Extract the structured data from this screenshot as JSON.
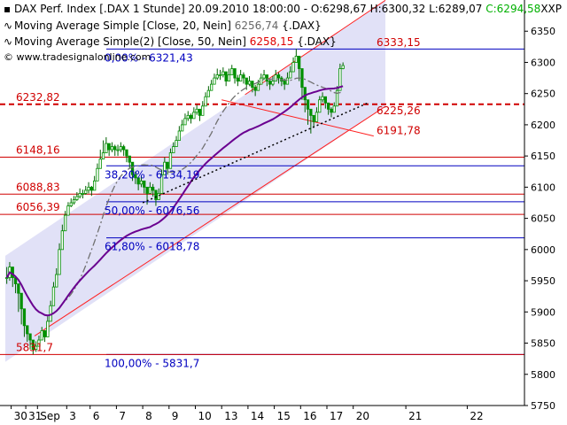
{
  "header": {
    "title_prefix": "DAX Perf. Index [.DAX  1 Stunde] 20.09.2010 18:00:00 - O:6298,67 H:6300,32 L:6289,07 ",
    "close_value": "C:6294,58",
    "symbol": "XXP",
    "ma20_label": "Moving Average Simple [Close, 20, Nein]",
    "ma20_value": "6256,74",
    "ma20_suffix": "{.DAX}",
    "ma50_label": "Moving Average Simple(2) [Close, 50, Nein]",
    "ma50_value": "6258,15",
    "ma50_suffix": "{.DAX}",
    "copyright": "© www.tradesignalonline.com"
  },
  "colors": {
    "candle": "#009000",
    "ma20": "#707070",
    "ma50": "#6a0090",
    "fib": "#0000c0",
    "support": "#d00000",
    "channel_fill": "#dcdcf6",
    "channel_edge": "#ff2020",
    "trend_dotted": "#000000",
    "close_value": "#00b000",
    "ma_value": "#e00000"
  },
  "chart_data": {
    "type": "candlestick",
    "title": "DAX Perf. Index [.DAX  1 Stunde]",
    "ylim": [
      5750,
      6400
    ],
    "y_ticks": [
      5750,
      5800,
      5850,
      5900,
      5950,
      6000,
      6050,
      6100,
      6150,
      6200,
      6250,
      6300,
      6350
    ],
    "y_tick_labels": [
      "5750",
      "5800",
      "5850",
      "5900",
      "5950",
      "6000",
      "6050",
      "6100",
      "6150",
      "6200",
      "6250",
      "6300",
      "6350"
    ],
    "x_ticks": [
      {
        "label": "30",
        "i": 2
      },
      {
        "label": "31",
        "i": 7
      },
      {
        "label": "Sep",
        "i": 11
      },
      {
        "label": "3",
        "i": 21
      },
      {
        "label": "6",
        "i": 29
      },
      {
        "label": "7",
        "i": 38
      },
      {
        "label": "8",
        "i": 47
      },
      {
        "label": "9",
        "i": 56
      },
      {
        "label": "10",
        "i": 65
      },
      {
        "label": "13",
        "i": 74
      },
      {
        "label": "14",
        "i": 83
      },
      {
        "label": "15",
        "i": 92
      },
      {
        "label": "16",
        "i": 101
      },
      {
        "label": "17",
        "i": 110
      },
      {
        "label": "20",
        "i": 119
      },
      {
        "label": "21",
        "i": 137
      },
      {
        "label": "22",
        "i": 158
      }
    ],
    "bar_count": 175,
    "close": [
      5955,
      5972,
      5955,
      5945,
      5930,
      5905,
      5878,
      5865,
      5855,
      5840,
      5845,
      5855,
      5870,
      5860,
      5885,
      5910,
      5940,
      5960,
      6000,
      6030,
      6055,
      6070,
      6075,
      6080,
      6085,
      6090,
      6090,
      6095,
      6100,
      6095,
      6110,
      6130,
      6145,
      6155,
      6170,
      6160,
      6165,
      6160,
      6160,
      6165,
      6160,
      6150,
      6140,
      6120,
      6115,
      6105,
      6110,
      6100,
      6090,
      6100,
      6095,
      6080,
      6090,
      6120,
      6140,
      6130,
      6155,
      6165,
      6175,
      6190,
      6200,
      6210,
      6215,
      6210,
      6220,
      6225,
      6215,
      6230,
      6245,
      6255,
      6265,
      6275,
      6280,
      6280,
      6285,
      6270,
      6280,
      6290,
      6275,
      6270,
      6280,
      6275,
      6265,
      6270,
      6260,
      6255,
      6265,
      6275,
      6280,
      6270,
      6265,
      6270,
      6280,
      6275,
      6270,
      6265,
      6275,
      6285,
      6300,
      6310,
      6290,
      6260,
      6240,
      6225,
      6215,
      6205,
      6220,
      6240,
      6245,
      6235,
      6225,
      6220,
      6230,
      6255,
      6290,
      6295
    ],
    "high": [
      5972,
      5980,
      5965,
      5955,
      5940,
      5915,
      5885,
      5872,
      5862,
      5850,
      5853,
      5862,
      5876,
      5870,
      5893,
      5918,
      5948,
      5970,
      6010,
      6040,
      6062,
      6076,
      6082,
      6086,
      6092,
      6098,
      6096,
      6102,
      6108,
      6102,
      6118,
      6138,
      6160,
      6175,
      6180,
      6168,
      6172,
      6168,
      6168,
      6172,
      6168,
      6158,
      6150,
      6130,
      6125,
      6115,
      6118,
      6110,
      6098,
      6108,
      6105,
      6090,
      6098,
      6128,
      6148,
      6138,
      6162,
      6172,
      6182,
      6198,
      6208,
      6218,
      6222,
      6218,
      6228,
      6232,
      6224,
      6238,
      6252,
      6262,
      6272,
      6282,
      6290,
      6288,
      6292,
      6282,
      6290,
      6296,
      6285,
      6280,
      6288,
      6284,
      6274,
      6278,
      6268,
      6264,
      6272,
      6282,
      6288,
      6280,
      6274,
      6278,
      6288,
      6284,
      6278,
      6274,
      6284,
      6294,
      6308,
      6322,
      6302,
      6270,
      6250,
      6232,
      6222,
      6212,
      6228,
      6246,
      6252,
      6244,
      6232,
      6228,
      6236,
      6262,
      6298,
      6300
    ],
    "low": [
      5945,
      5950,
      5940,
      5930,
      5900,
      5880,
      5860,
      5852,
      5840,
      5832,
      5836,
      5845,
      5858,
      5852,
      5876,
      5900,
      5930,
      5950,
      5990,
      6020,
      6046,
      6062,
      6068,
      6072,
      6078,
      6082,
      6082,
      6088,
      6090,
      6086,
      6100,
      6120,
      6138,
      6148,
      6158,
      6150,
      6156,
      6150,
      6150,
      6156,
      6150,
      6140,
      6130,
      6110,
      6105,
      6095,
      6100,
      6090,
      6072,
      6090,
      6085,
      6070,
      6082,
      6110,
      6130,
      6120,
      6146,
      6156,
      6166,
      6182,
      6192,
      6202,
      6206,
      6202,
      6212,
      6216,
      6206,
      6222,
      6238,
      6248,
      6256,
      6266,
      6272,
      6272,
      6276,
      6262,
      6270,
      6280,
      6266,
      6262,
      6272,
      6266,
      6256,
      6262,
      6252,
      6246,
      6256,
      6266,
      6272,
      6262,
      6256,
      6262,
      6272,
      6266,
      6262,
      6256,
      6266,
      6276,
      6292,
      6300,
      6270,
      6240,
      6220,
      6200,
      6186,
      6195,
      6210,
      6230,
      6236,
      6226,
      6216,
      6212,
      6222,
      6244,
      6280,
      6289
    ],
    "horizontal_levels": [
      {
        "label": "0,00% - 6321,43",
        "value": 6321.43,
        "kind": "fib"
      },
      {
        "label": "38,20% - 6134,19",
        "value": 6134.19,
        "kind": "fib"
      },
      {
        "label": "50,00% - 6076,56",
        "value": 6076.56,
        "kind": "fib"
      },
      {
        "label": "61,80% - 6018,78",
        "value": 6018.78,
        "kind": "fib"
      },
      {
        "label": "100,00% - 5831,7",
        "value": 5831.7,
        "kind": "fib"
      },
      {
        "label": "6232,82",
        "value": 6232.82,
        "kind": "dashed"
      },
      {
        "label": "6148,16",
        "value": 6148.16,
        "kind": "support"
      },
      {
        "label": "6088,83",
        "value": 6088.83,
        "kind": "support"
      },
      {
        "label": "6056,39",
        "value": 6056.39,
        "kind": "support"
      },
      {
        "label": "5831,7",
        "value": 5831.7,
        "kind": "support_label"
      }
    ],
    "annotations": [
      {
        "label": "6333,15",
        "value": 6333.15
      },
      {
        "label": "6225,26",
        "value": 6225.26
      },
      {
        "label": "6191,78",
        "value": 6191.78
      }
    ],
    "series": [
      {
        "name": "Moving Average Simple [Close, 20, Nein]",
        "last": 6256.74
      },
      {
        "name": "Moving Average Simple(2) [Close, 50, Nein]",
        "last": 6258.15
      }
    ]
  }
}
